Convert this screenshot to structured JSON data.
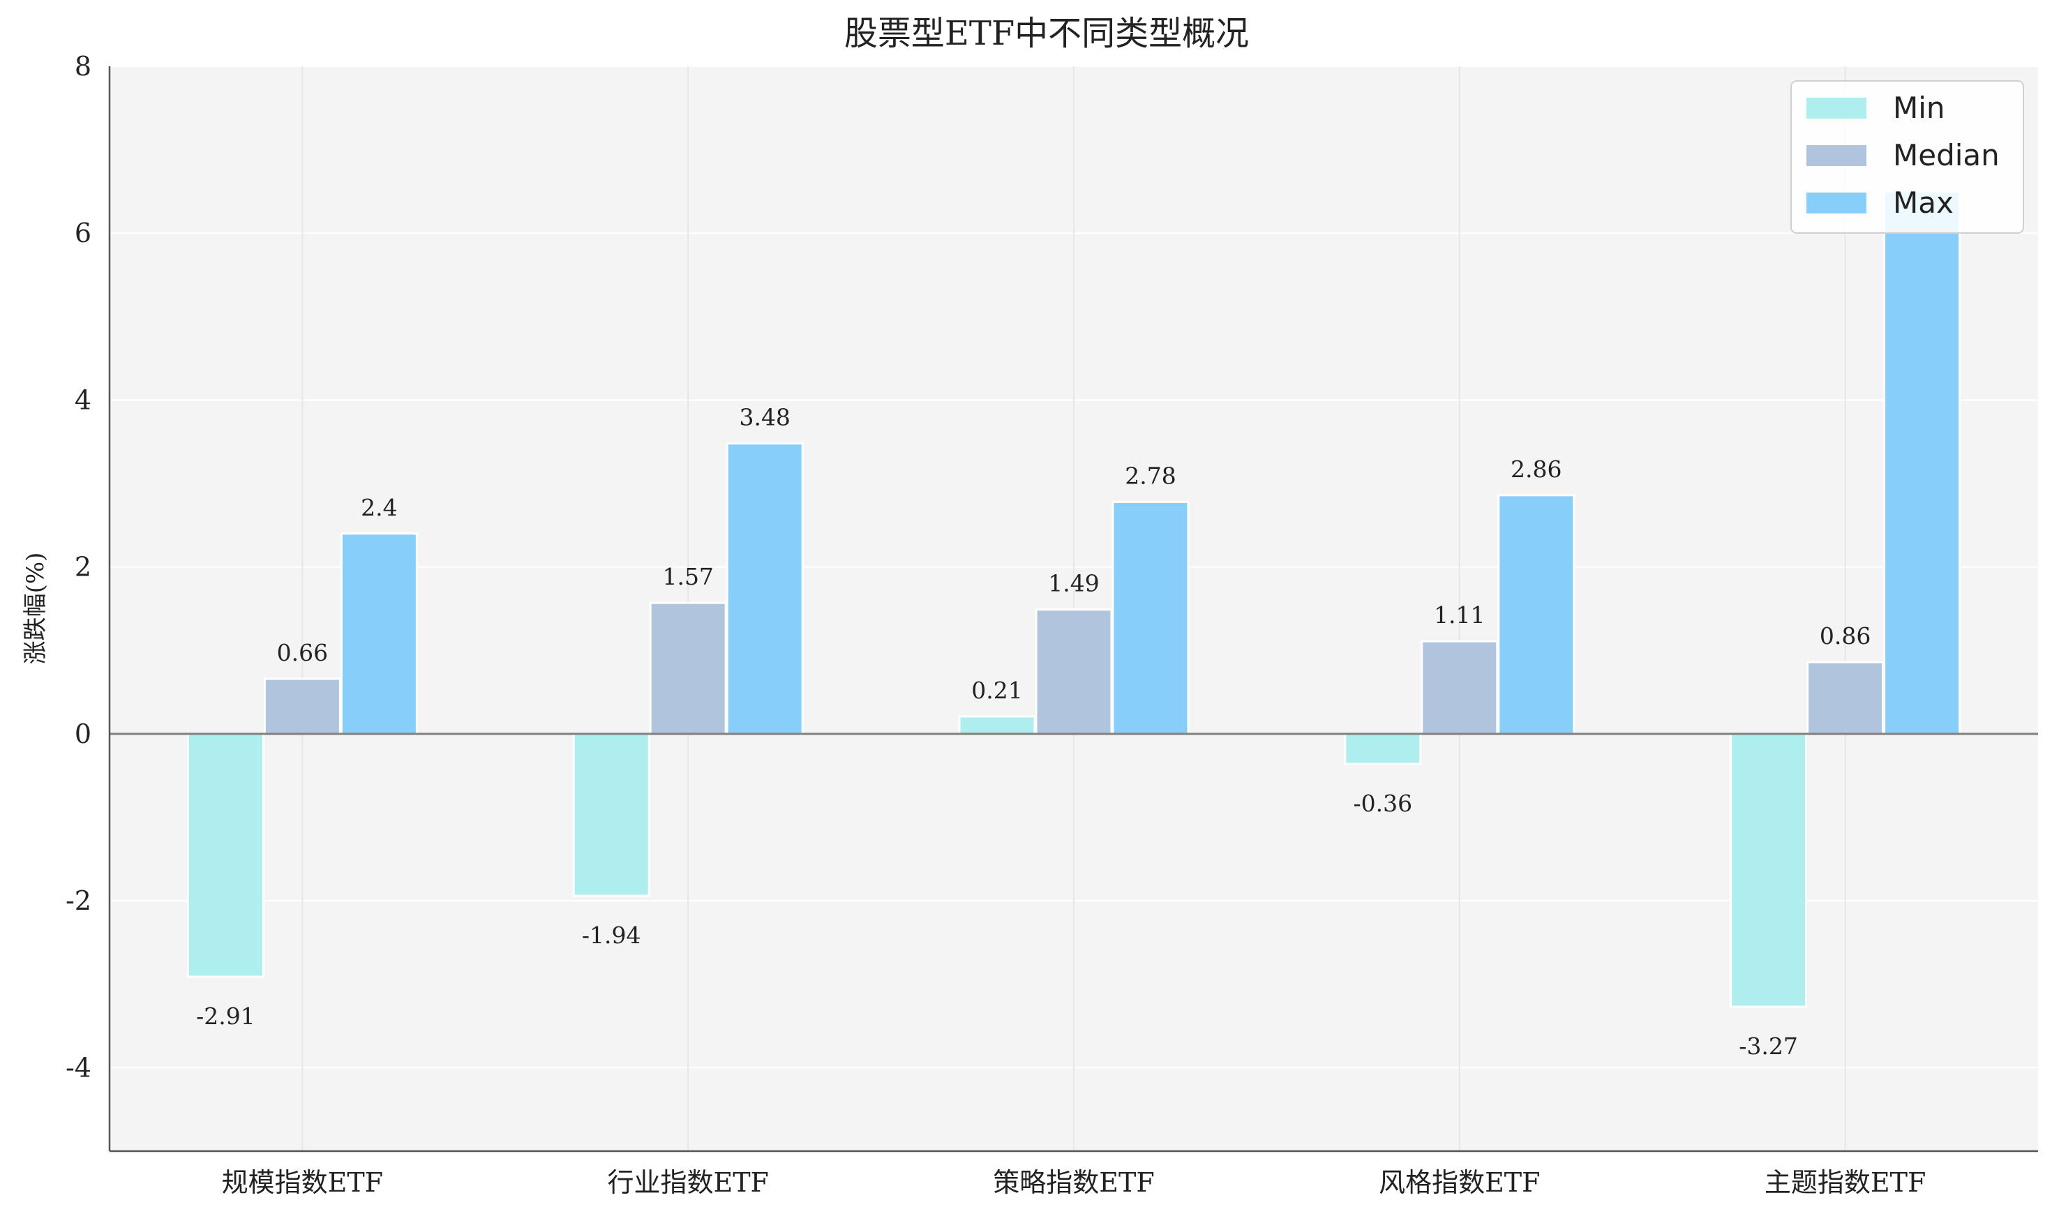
{
  "chart_data": {
    "type": "bar",
    "title": "股票型ETF中不同类型概况",
    "xlabel": "",
    "ylabel": "涨跌幅(%)",
    "ylim": [
      -5,
      8
    ],
    "yticks": [
      -4,
      -2,
      0,
      2,
      4,
      6,
      8
    ],
    "ytick_labels": [
      "-4",
      "-2",
      "0",
      "2",
      "4",
      "6",
      "8"
    ],
    "categories": [
      "规模指数ETF",
      "行业指数ETF",
      "策略指数ETF",
      "风格指数ETF",
      "主题指数ETF"
    ],
    "series": [
      {
        "name": "Min",
        "values": [
          -2.91,
          -1.94,
          0.21,
          -0.36,
          -3.27
        ],
        "labels": [
          "-2.91",
          "-1.94",
          "0.21",
          "-0.36",
          "-3.27"
        ],
        "color": "#afeeee"
      },
      {
        "name": "Median",
        "values": [
          0.66,
          1.57,
          1.49,
          1.11,
          0.86
        ],
        "labels": [
          "0.66",
          "1.57",
          "1.49",
          "1.11",
          "0.86"
        ],
        "color": "#b0c4de"
      },
      {
        "name": "Max",
        "values": [
          2.4,
          3.48,
          2.78,
          2.86,
          6.5
        ],
        "labels": [
          "2.4",
          "3.48",
          "2.78",
          "2.86",
          ""
        ],
        "color": "#87cefa"
      }
    ],
    "grid": true,
    "legend_position": "top-right",
    "background_color": "#f4f4f4",
    "zero_line_color": "#808080"
  }
}
